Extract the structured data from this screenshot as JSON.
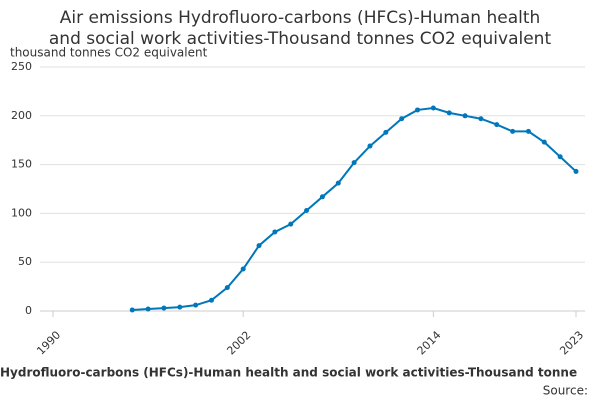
{
  "chart_data": {
    "type": "line",
    "title": [
      "Air emissions Hydrofluoro-carbons (HFCs)-Human health",
      "and social work activities-Thousand tonnes CO2 equivalent"
    ],
    "y_label": "thousand tonnes CO2 equivalent",
    "x": [
      1995,
      1996,
      1997,
      1998,
      1999,
      2000,
      2001,
      2002,
      2003,
      2004,
      2005,
      2006,
      2007,
      2008,
      2009,
      2010,
      2011,
      2012,
      2013,
      2014,
      2015,
      2016,
      2017,
      2018,
      2019,
      2020,
      2021,
      2022,
      2023
    ],
    "series": [
      {
        "name": "Hydrofluoro-carbons (HFCs)-Human health and social work activities-Thousand tonne",
        "color": "#0077bb",
        "values": [
          1,
          2,
          3,
          4,
          6,
          11,
          24,
          43,
          67,
          81,
          89,
          103,
          117,
          131,
          152,
          169,
          183,
          197,
          206,
          208,
          203,
          200,
          197,
          191,
          184,
          184,
          173,
          158,
          143
        ]
      }
    ],
    "xlim": [
      1990,
      2023
    ],
    "xticks": [
      1990,
      2002,
      2014,
      2023
    ],
    "ylim": [
      0,
      250
    ],
    "yticks": [
      0,
      50,
      100,
      150,
      200,
      250
    ],
    "grid": true,
    "source": "Source:"
  }
}
